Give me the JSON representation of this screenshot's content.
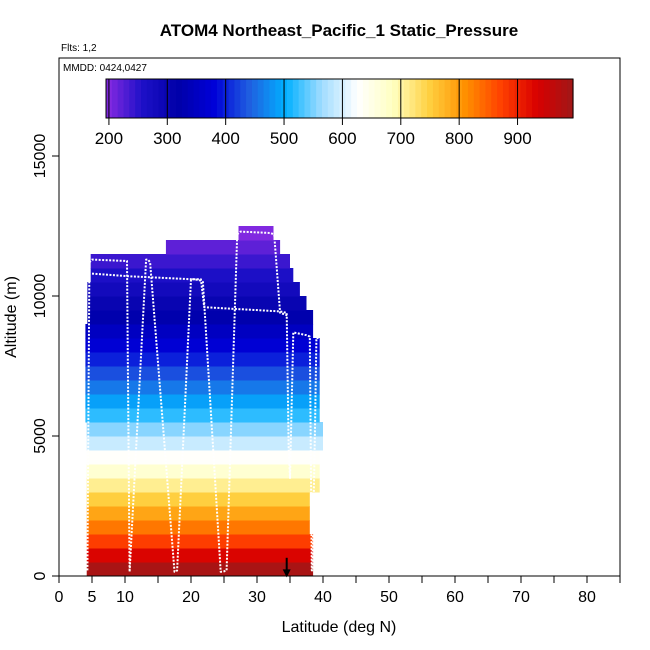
{
  "chart_data": {
    "type": "heatmap",
    "title": "ATOM4 Northeast_Pacific_1 Static_Pressure",
    "flights_note": "Flts: 1,2",
    "date_note": "MMDD: 0424,0427",
    "xlabel": "Latitude (deg N)",
    "ylabel": "Altitude (m)",
    "xlim": [
      0,
      85
    ],
    "ylim": [
      0,
      18500
    ],
    "x_ticks": [
      0,
      5,
      10,
      20,
      30,
      40,
      50,
      60,
      70,
      80
    ],
    "x_minor_ticks": [
      15,
      25,
      35,
      45,
      55,
      65,
      75,
      85
    ],
    "y_ticks": [
      0,
      5000,
      10000,
      15000
    ],
    "colorbar": {
      "min": 195,
      "max": 995,
      "tick_values": [
        200,
        300,
        400,
        500,
        600,
        700,
        800,
        900
      ],
      "tick_labels": [
        "200",
        "300",
        "400",
        "500",
        "600",
        "700",
        "800",
        "900"
      ],
      "stops": [
        "#8a2be2",
        "#1e10c8",
        "#0000a8",
        "#0000d8",
        "#2060e0",
        "#00b0ff",
        "#a0dcff",
        "#ffffff",
        "#ffffc0",
        "#ffd040",
        "#ff9000",
        "#ff4000",
        "#d80000",
        "#a01818"
      ]
    },
    "bin_altitude_step_m": 500,
    "profile_bins": [
      {
        "lat_min": 4.2,
        "lat_max": 38.5,
        "alt_min": 0,
        "alt_max": 500,
        "pressure": 985
      },
      {
        "lat_min": 4.2,
        "lat_max": 38.5,
        "alt_min": 500,
        "alt_max": 1000,
        "pressure": 930
      },
      {
        "lat_min": 4.2,
        "lat_max": 38.5,
        "alt_min": 1000,
        "alt_max": 1500,
        "pressure": 875
      },
      {
        "lat_min": 4.2,
        "lat_max": 38.0,
        "alt_min": 1500,
        "alt_max": 2000,
        "pressure": 830
      },
      {
        "lat_min": 4.2,
        "lat_max": 38.0,
        "alt_min": 2000,
        "alt_max": 2500,
        "pressure": 790
      },
      {
        "lat_min": 4.2,
        "lat_max": 38.0,
        "alt_min": 2500,
        "alt_max": 3000,
        "pressure": 750
      },
      {
        "lat_min": 4.2,
        "lat_max": 39.5,
        "alt_min": 3000,
        "alt_max": 3500,
        "pressure": 710
      },
      {
        "lat_min": 4.2,
        "lat_max": 39.5,
        "alt_min": 3500,
        "alt_max": 4000,
        "pressure": 670
      },
      {
        "lat_min": 4.2,
        "lat_max": 39.5,
        "alt_min": 4000,
        "alt_max": 4500,
        "pressure": 630
      },
      {
        "lat_min": 4.2,
        "lat_max": 40.0,
        "alt_min": 4500,
        "alt_max": 5000,
        "pressure": 590
      },
      {
        "lat_min": 4.2,
        "lat_max": 40.0,
        "alt_min": 5000,
        "alt_max": 5500,
        "pressure": 555
      },
      {
        "lat_min": 4.0,
        "lat_max": 39.5,
        "alt_min": 5500,
        "alt_max": 6000,
        "pressure": 520
      },
      {
        "lat_min": 4.0,
        "lat_max": 39.5,
        "alt_min": 6000,
        "alt_max": 6500,
        "pressure": 490
      },
      {
        "lat_min": 4.0,
        "lat_max": 39.5,
        "alt_min": 6500,
        "alt_max": 7000,
        "pressure": 460
      },
      {
        "lat_min": 4.0,
        "lat_max": 39.5,
        "alt_min": 7000,
        "alt_max": 7500,
        "pressure": 430
      },
      {
        "lat_min": 4.0,
        "lat_max": 39.5,
        "alt_min": 7500,
        "alt_max": 8000,
        "pressure": 400
      },
      {
        "lat_min": 4.0,
        "lat_max": 39.5,
        "alt_min": 8000,
        "alt_max": 8500,
        "pressure": 375
      },
      {
        "lat_min": 4.0,
        "lat_max": 38.5,
        "alt_min": 8500,
        "alt_max": 9000,
        "pressure": 350
      },
      {
        "lat_min": 4.3,
        "lat_max": 38.5,
        "alt_min": 9000,
        "alt_max": 9500,
        "pressure": 325
      },
      {
        "lat_min": 4.3,
        "lat_max": 37.5,
        "alt_min": 9500,
        "alt_max": 10000,
        "pressure": 300
      },
      {
        "lat_min": 4.3,
        "lat_max": 36.5,
        "alt_min": 10000,
        "alt_max": 10500,
        "pressure": 280
      },
      {
        "lat_min": 4.8,
        "lat_max": 35.5,
        "alt_min": 10500,
        "alt_max": 11000,
        "pressure": 260
      },
      {
        "lat_min": 4.8,
        "lat_max": 35.0,
        "alt_min": 11000,
        "alt_max": 11500,
        "pressure": 240
      },
      {
        "lat_min": 16.2,
        "lat_max": 33.5,
        "alt_min": 11500,
        "alt_max": 12000,
        "pressure": 220
      },
      {
        "lat_min": 27.2,
        "lat_max": 32.5,
        "alt_min": 12000,
        "alt_max": 12500,
        "pressure": 200
      }
    ],
    "flight_tracks": [
      {
        "name": "Flight 1",
        "x": [
          4.3,
          4.6,
          5.0,
          10.3,
          10.7,
          10.7,
          13.2,
          13.5,
          13.8,
          17.5,
          17.7,
          17.9,
          20.0,
          20.5,
          21.5,
          21.8,
          24.5,
          24.8,
          25.4,
          27.0,
          27.5,
          32.0,
          32.6,
          33.5,
          34.7
        ],
        "y": [
          200,
          11200,
          11300,
          11250,
          150,
          150,
          11300,
          11300,
          11200,
          150,
          150,
          200,
          10600,
          10600,
          10550,
          10500,
          150,
          150,
          200,
          12200,
          12300,
          12250,
          12200,
          9400,
          9300
        ]
      },
      {
        "name": "Flight 2",
        "x": [
          5.0,
          11.0,
          20.0,
          21.5,
          22.0,
          33.5,
          34.5,
          34.8,
          35.0,
          35.5,
          36.5,
          37.5,
          38.0,
          38.3,
          38.4,
          38.8,
          39.0,
          39.5
        ],
        "y": [
          10800,
          10700,
          10600,
          10600,
          9600,
          9450,
          9400,
          4500,
          3500,
          8700,
          8650,
          8600,
          8550,
          200,
          200,
          5500,
          8500,
          8500
        ]
      }
    ],
    "arrow_marker": {
      "lat": 34.5,
      "alt_from": 650,
      "alt_to": -50
    }
  }
}
